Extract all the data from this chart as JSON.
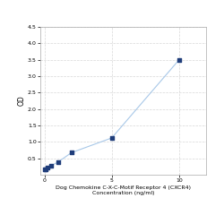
{
  "x_values": [
    0.0625,
    0.125,
    0.25,
    0.5,
    1,
    2,
    5,
    10
  ],
  "y_values": [
    0.155,
    0.175,
    0.21,
    0.28,
    0.38,
    0.67,
    1.12,
    3.5
  ],
  "xlabel_line1": "Dog Chemokine C-X-C-Motif Receptor 4 (CXCR4)",
  "xlabel_line2": "Concentration (ng/ml)",
  "ylabel": "OD",
  "xlim": [
    -0.3,
    12
  ],
  "ylim": [
    0,
    4.5
  ],
  "yticks": [
    0.5,
    1.0,
    1.5,
    2.0,
    2.5,
    3.0,
    3.5,
    4.0,
    4.5
  ],
  "xtick_positions": [
    0,
    5,
    10
  ],
  "line_color": "#a8c8e8",
  "marker_color": "#1f3d7a",
  "marker_size": 12,
  "grid_color": "#d8d8d8",
  "background_color": "#ffffff",
  "font_size_label": 4.5,
  "font_size_tick": 4.5
}
